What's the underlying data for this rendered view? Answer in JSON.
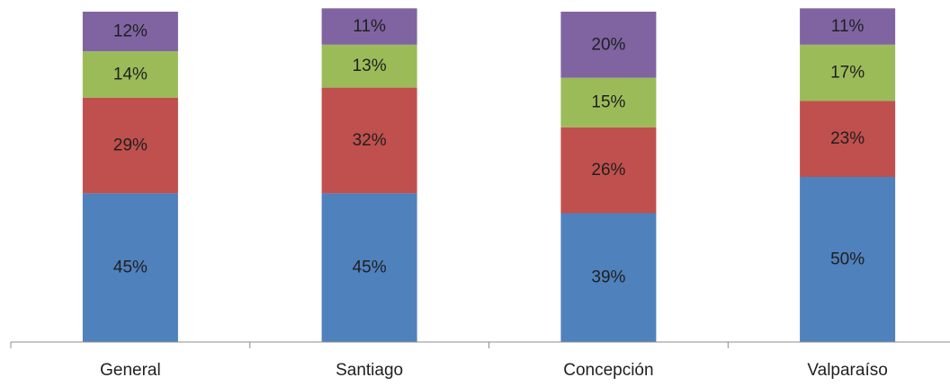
{
  "chart_data": {
    "type": "bar",
    "stacked": true,
    "percent_stacked": true,
    "categories": [
      "General",
      "Santiago",
      "Concepción",
      "Valparaíso"
    ],
    "series": [
      {
        "color": "#4f81bd",
        "values": [
          45,
          45,
          39,
          50
        ],
        "labels": [
          "45%",
          "45%",
          "39%",
          "50%"
        ]
      },
      {
        "color": "#c0504d",
        "values": [
          29,
          32,
          26,
          23
        ],
        "labels": [
          "29%",
          "32%",
          "26%",
          "23%"
        ]
      },
      {
        "color": "#9bbb59",
        "values": [
          14,
          13,
          15,
          17
        ],
        "labels": [
          "14%",
          "13%",
          "15%",
          "17%"
        ]
      },
      {
        "color": "#8064a2",
        "values": [
          12,
          11,
          20,
          11
        ],
        "labels": [
          "12%",
          "11%",
          "20%",
          "11%"
        ]
      }
    ],
    "ylim": [
      0,
      100
    ],
    "grid": false,
    "legend": "none"
  }
}
